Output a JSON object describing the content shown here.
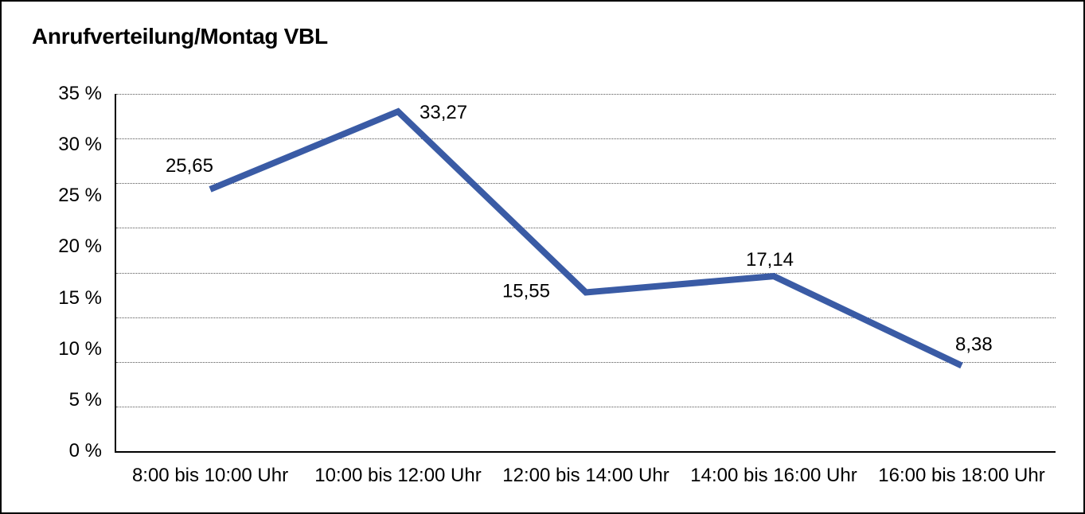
{
  "window": {
    "background_color": "#ffffff",
    "frame_border_color": "#000000"
  },
  "chart_data": {
    "type": "line",
    "title": "Anrufverteilung/Montag VBL",
    "categories": [
      "8:00 bis 10:00 Uhr",
      "10:00 bis 12:00 Uhr",
      "12:00 bis 14:00 Uhr",
      "14:00 bis 16:00 Uhr",
      "16:00 bis 18:00 Uhr"
    ],
    "values": [
      25.65,
      33.27,
      15.55,
      17.14,
      8.38
    ],
    "point_labels": [
      "25,65",
      "33,27",
      "15,55",
      "17,14",
      "8,38"
    ],
    "y_tick_labels": [
      "35 %",
      "30 %",
      "25 %",
      "20 %",
      "15 %",
      "10 %",
      "5 %",
      "0 %"
    ],
    "ylim": [
      0,
      35
    ],
    "y_tick_step": 5,
    "horizontal_gridline_count": 9,
    "grid_style": "dotted",
    "grid_color": "#555555",
    "axis_color": "#000000",
    "line_color": "#3A5BA5",
    "line_width": 8,
    "legend": "none",
    "xlabel": "",
    "ylabel": ""
  }
}
